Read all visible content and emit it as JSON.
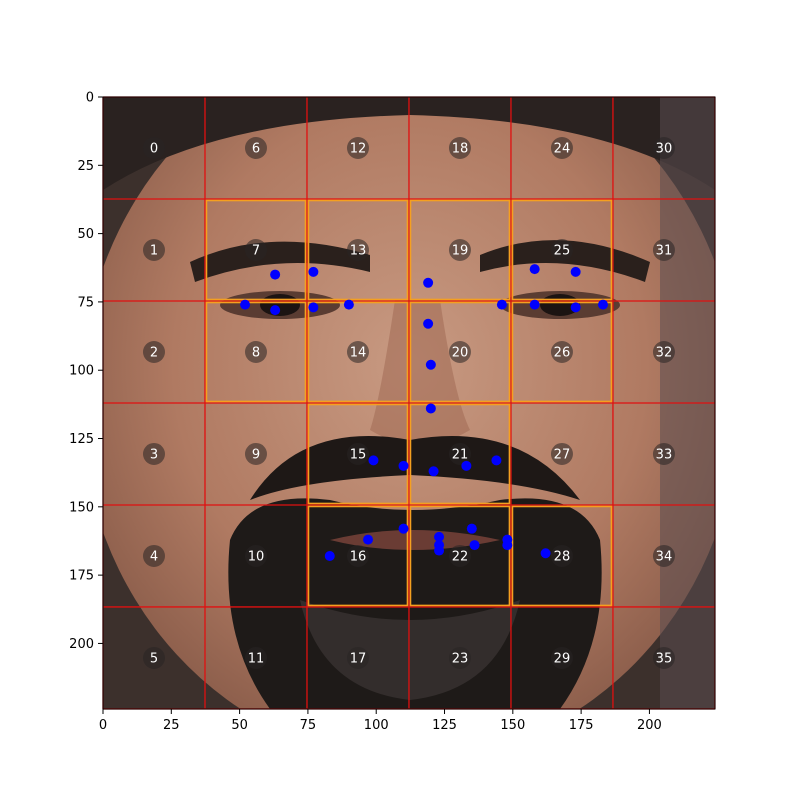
{
  "chart_data": {
    "type": "scatter",
    "title": "",
    "xlabel": "",
    "ylabel": "",
    "xlim": [
      0,
      224
    ],
    "ylim": [
      224,
      0
    ],
    "x_ticks": [
      0,
      25,
      50,
      75,
      100,
      125,
      150,
      175,
      200
    ],
    "y_ticks": [
      0,
      25,
      50,
      75,
      100,
      125,
      150,
      175,
      200
    ],
    "background": "photo of a bearded man's face, frontal view",
    "grid": {
      "rows": 6,
      "cols": 6,
      "cell_size": 37.33,
      "line_color": "#e01010",
      "cell_labels": [
        "0",
        "1",
        "2",
        "3",
        "4",
        "5",
        "6",
        "7",
        "8",
        "9",
        "10",
        "11",
        "12",
        "13",
        "14",
        "15",
        "16",
        "17",
        "18",
        "19",
        "20",
        "21",
        "22",
        "23",
        "24",
        "25",
        "26",
        "27",
        "28",
        "29",
        "30",
        "31",
        "32",
        "33",
        "34",
        "35"
      ],
      "highlighted_cells": [
        7,
        8,
        13,
        14,
        15,
        16,
        19,
        20,
        21,
        22,
        25,
        26,
        28
      ],
      "highlight_color": "#f5a020"
    },
    "series": [
      {
        "marker_color": "#0000ff",
        "points": [
          [
            63,
            65
          ],
          [
            77,
            64
          ],
          [
            52,
            76
          ],
          [
            63,
            78
          ],
          [
            77,
            77
          ],
          [
            90,
            76
          ],
          [
            119,
            68
          ],
          [
            158,
            63
          ],
          [
            173,
            64
          ],
          [
            146,
            76
          ],
          [
            158,
            76
          ],
          [
            173,
            77
          ],
          [
            183,
            76
          ],
          [
            119,
            83
          ],
          [
            120,
            98
          ],
          [
            120,
            114
          ],
          [
            99,
            133
          ],
          [
            110,
            135
          ],
          [
            121,
            137
          ],
          [
            133,
            135
          ],
          [
            144,
            133
          ],
          [
            83,
            168
          ],
          [
            97,
            162
          ],
          [
            110,
            158
          ],
          [
            123,
            161
          ],
          [
            123,
            164
          ],
          [
            123,
            166
          ],
          [
            135,
            158
          ],
          [
            136,
            164
          ],
          [
            148,
            162
          ],
          [
            148,
            164
          ],
          [
            162,
            167
          ]
        ]
      }
    ]
  }
}
